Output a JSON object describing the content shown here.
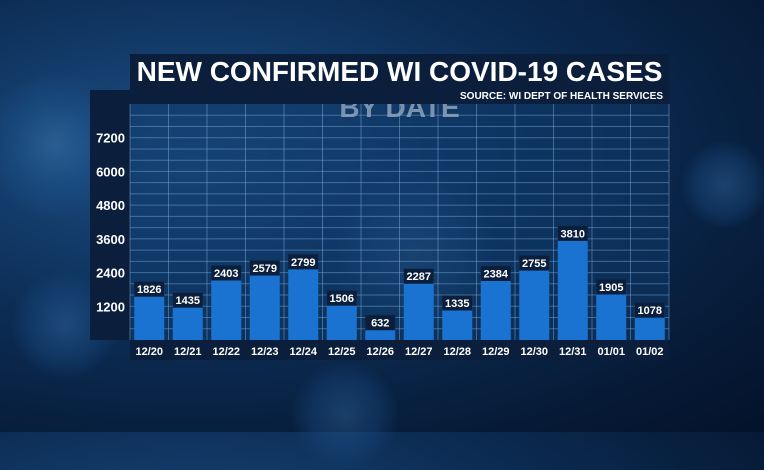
{
  "chart_data": {
    "type": "bar",
    "title": "NEW CONFIRMED WI COVID-19 CASES BY DATE",
    "source": "SOURCE: WI DEPT OF HEALTH SERVICES",
    "categories": [
      "12/20",
      "12/21",
      "12/22",
      "12/23",
      "12/24",
      "12/25",
      "12/26",
      "12/27",
      "12/28",
      "12/29",
      "12/30",
      "12/31",
      "01/01",
      "01/02"
    ],
    "values": [
      1826,
      1435,
      2403,
      2579,
      2799,
      1506,
      632,
      2287,
      1335,
      2384,
      2755,
      3810,
      1905,
      1078
    ],
    "yticks": [
      1200,
      2400,
      3600,
      4800,
      6000,
      7200
    ],
    "ylim": [
      0,
      8400
    ],
    "grid": true,
    "bar_color": "#1a73d1",
    "label_bg_color": "#0b1f3d"
  }
}
